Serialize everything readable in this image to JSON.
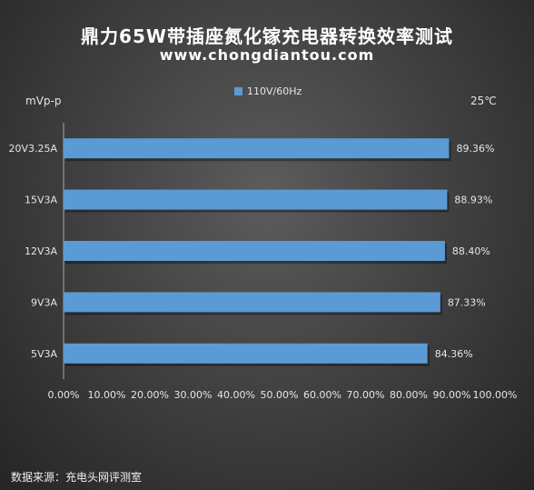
{
  "header": {
    "title": "鼎力65W带插座氮化镓充电器转换效率测试",
    "subtitle": "www.chongdiantou.com"
  },
  "units": {
    "left": "mVp-p",
    "right": "25℃"
  },
  "footer": {
    "source": "数据来源：充电头网评测室"
  },
  "chart_data": {
    "type": "bar",
    "orientation": "horizontal",
    "categories": [
      "20V3.25A",
      "15V3A",
      "12V3A",
      "9V3A",
      "5V3A"
    ],
    "series": [
      {
        "name": "110V/60Hz",
        "values": [
          89.36,
          88.93,
          88.4,
          87.33,
          84.36
        ],
        "labels": [
          "89.36%",
          "88.93%",
          "88.40%",
          "87.33%",
          "84.36%"
        ],
        "color": "#5b9bd5"
      }
    ],
    "xlim": [
      0,
      100
    ],
    "xticks": [
      "0.00%",
      "10.00%",
      "20.00%",
      "30.00%",
      "40.00%",
      "50.00%",
      "60.00%",
      "70.00%",
      "80.00%",
      "90.00%",
      "100.00%"
    ],
    "grid": false,
    "legend_position": "top-center"
  }
}
